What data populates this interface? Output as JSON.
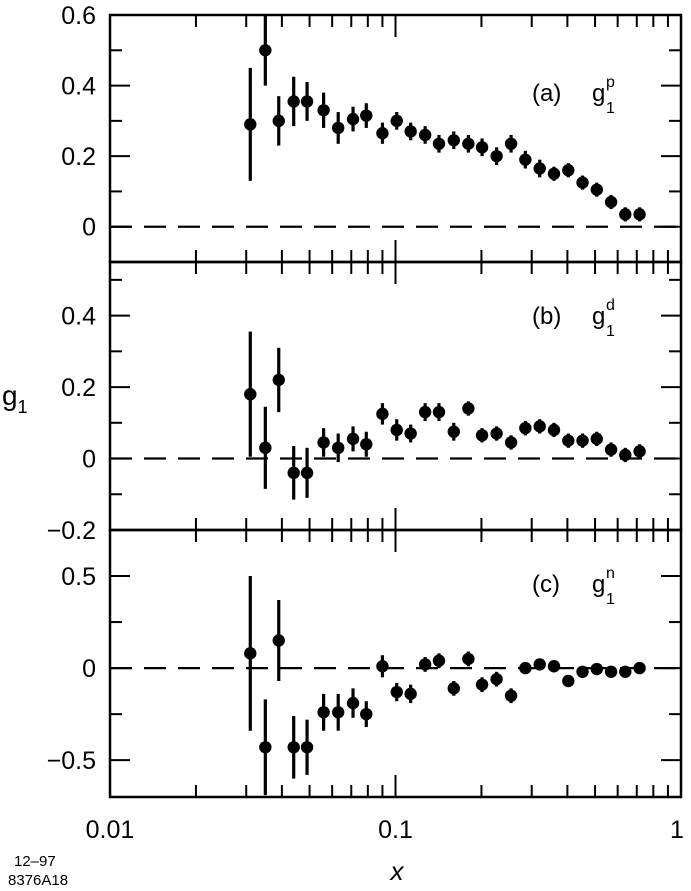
{
  "figure": {
    "ylabel": "g",
    "ylabel_sub": "1",
    "xlabel": "x",
    "id_lines": [
      "12–97",
      "8376A18"
    ]
  },
  "chart_data": [
    {
      "type": "scatter",
      "panel_label": "(a)",
      "quantity": "g",
      "quantity_sub": "1",
      "quantity_sup": "p",
      "xscale": "log",
      "xlim": [
        0.01,
        1
      ],
      "ylim": [
        -0.1,
        0.6
      ],
      "yticks": [
        0,
        0.2,
        0.4,
        0.6
      ],
      "yticklabels": [
        "0",
        "0.2",
        "0.4",
        "0.6"
      ],
      "reference_line": 0,
      "x": [
        0.031,
        0.035,
        0.039,
        0.044,
        0.049,
        0.056,
        0.063,
        0.071,
        0.079,
        0.09,
        0.101,
        0.113,
        0.127,
        0.142,
        0.16,
        0.18,
        0.201,
        0.226,
        0.254,
        0.285,
        0.32,
        0.359,
        0.403,
        0.452,
        0.507,
        0.569,
        0.638,
        0.716
      ],
      "y": [
        0.29,
        0.5,
        0.3,
        0.355,
        0.355,
        0.33,
        0.28,
        0.305,
        0.315,
        0.265,
        0.3,
        0.27,
        0.26,
        0.235,
        0.245,
        0.235,
        0.225,
        0.2,
        0.235,
        0.19,
        0.165,
        0.15,
        0.16,
        0.125,
        0.105,
        0.07,
        0.035,
        0.035
      ],
      "yerr": [
        0.16,
        0.1,
        0.07,
        0.07,
        0.055,
        0.05,
        0.045,
        0.035,
        0.035,
        0.03,
        0.025,
        0.025,
        0.025,
        0.025,
        0.025,
        0.025,
        0.025,
        0.025,
        0.025,
        0.025,
        0.025,
        0.02,
        0.02,
        0.02,
        0.02,
        0.02,
        0.02,
        0.02
      ]
    },
    {
      "type": "scatter",
      "panel_label": "(b)",
      "quantity": "g",
      "quantity_sub": "1",
      "quantity_sup": "d",
      "xscale": "log",
      "xlim": [
        0.01,
        1
      ],
      "ylim": [
        -0.2,
        0.55
      ],
      "yticks": [
        -0.2,
        0,
        0.2,
        0.4
      ],
      "yticklabels": [
        "−0.2",
        "0",
        "0.2",
        "0.4"
      ],
      "reference_line": 0,
      "x": [
        0.031,
        0.035,
        0.039,
        0.044,
        0.049,
        0.056,
        0.063,
        0.071,
        0.079,
        0.09,
        0.101,
        0.113,
        0.127,
        0.142,
        0.16,
        0.18,
        0.201,
        0.226,
        0.254,
        0.285,
        0.32,
        0.359,
        0.403,
        0.452,
        0.507,
        0.569,
        0.638,
        0.716
      ],
      "y": [
        0.18,
        0.03,
        0.22,
        -0.04,
        -0.04,
        0.045,
        0.03,
        0.055,
        0.04,
        0.125,
        0.08,
        0.07,
        0.13,
        0.13,
        0.075,
        0.14,
        0.065,
        0.07,
        0.045,
        0.085,
        0.09,
        0.08,
        0.05,
        0.05,
        0.055,
        0.025,
        0.01,
        0.02
      ],
      "yerr": [
        0.175,
        0.115,
        0.09,
        0.075,
        0.07,
        0.04,
        0.04,
        0.035,
        0.035,
        0.03,
        0.03,
        0.025,
        0.025,
        0.025,
        0.025,
        0.02,
        0.02,
        0.02,
        0.02,
        0.02,
        0.02,
        0.02,
        0.02,
        0.02,
        0.02,
        0.02,
        0.02,
        0.02
      ]
    },
    {
      "type": "scatter",
      "panel_label": "(c)",
      "quantity": "g",
      "quantity_sub": "1",
      "quantity_sup": "n",
      "xscale": "log",
      "xlim": [
        0.01,
        1
      ],
      "ylim": [
        -0.7,
        0.75
      ],
      "yticks": [
        -0.5,
        0,
        0.5
      ],
      "yticklabels": [
        "−0.5",
        "0",
        "0.5"
      ],
      "reference_line": 0,
      "x": [
        0.031,
        0.035,
        0.039,
        0.044,
        0.049,
        0.056,
        0.063,
        0.071,
        0.079,
        0.09,
        0.101,
        0.113,
        0.127,
        0.142,
        0.16,
        0.18,
        0.201,
        0.226,
        0.254,
        0.285,
        0.32,
        0.359,
        0.403,
        0.452,
        0.507,
        0.569,
        0.638,
        0.716
      ],
      "y": [
        0.08,
        -0.43,
        0.15,
        -0.43,
        -0.43,
        -0.24,
        -0.24,
        -0.19,
        -0.25,
        0.01,
        -0.13,
        -0.14,
        0.02,
        0.04,
        -0.11,
        0.05,
        -0.09,
        -0.06,
        -0.15,
        0.0,
        0.02,
        0.01,
        -0.07,
        -0.02,
        -0.005,
        -0.02,
        -0.02,
        0.0
      ],
      "yerr": [
        0.42,
        0.26,
        0.22,
        0.17,
        0.15,
        0.1,
        0.1,
        0.08,
        0.07,
        0.06,
        0.05,
        0.05,
        0.04,
        0.04,
        0.04,
        0.04,
        0.04,
        0.04,
        0.04,
        0.03,
        0.03,
        0.03,
        0.03,
        0.03,
        0.03,
        0.03,
        0.03,
        0.03
      ]
    }
  ],
  "xticks": [
    0.01,
    0.1,
    1
  ],
  "xticklabels": [
    "0.01",
    "0.1",
    "1"
  ]
}
